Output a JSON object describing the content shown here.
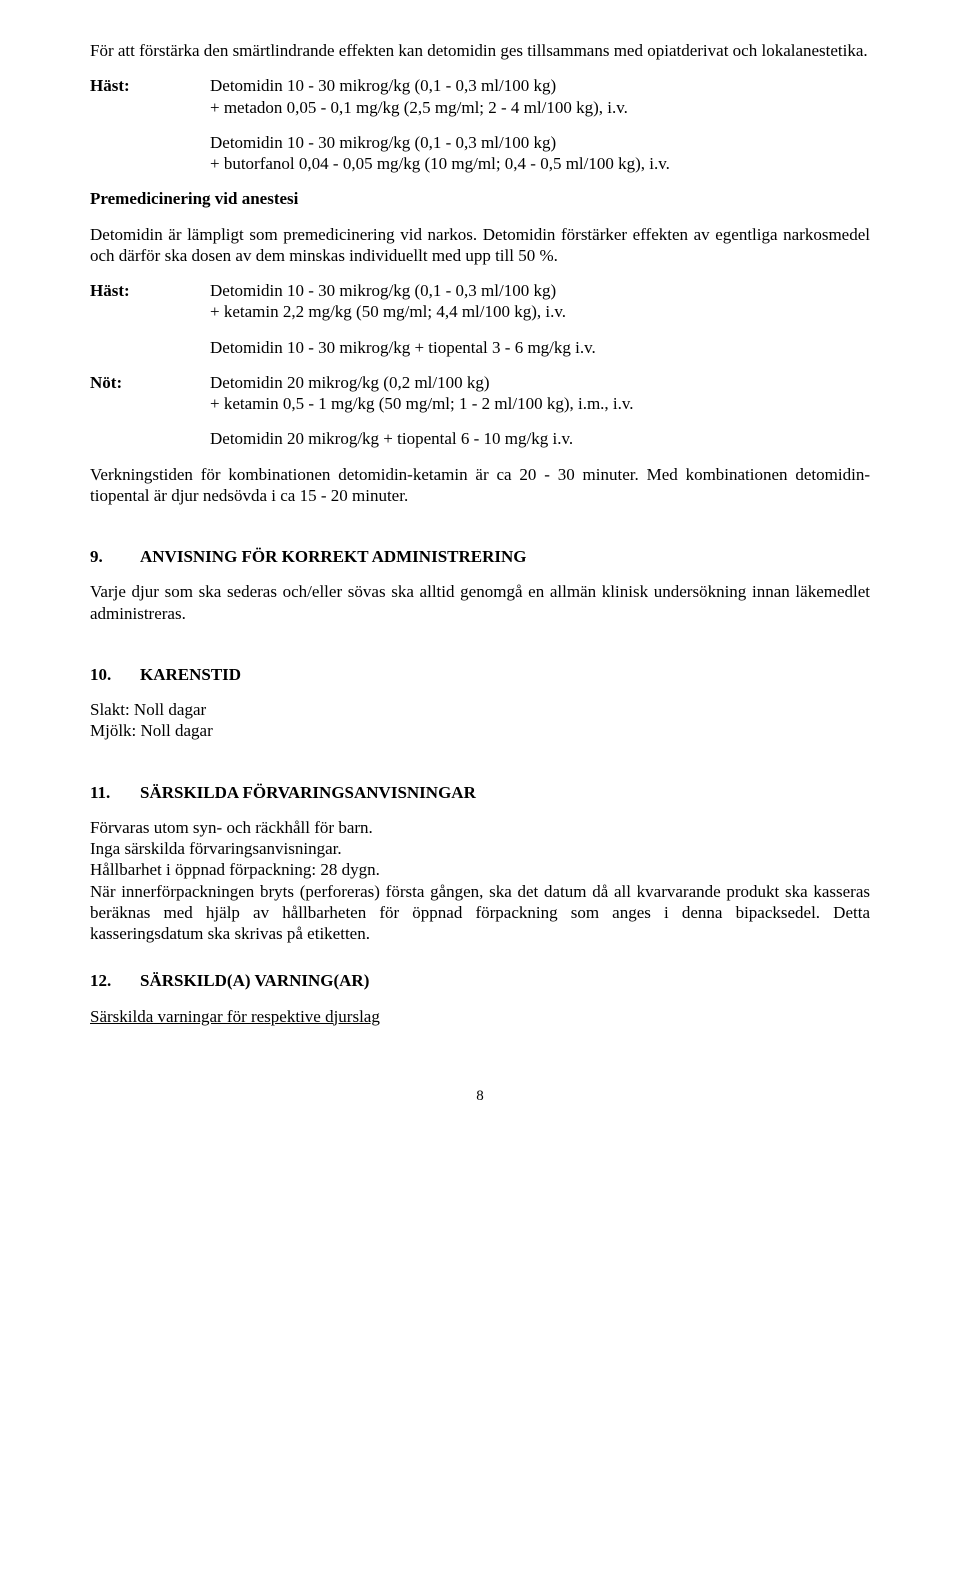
{
  "intro": "För att förstärka den smärtlindrande effekten kan detomidin ges tillsammans med opiatderivat och lokalanestetika.",
  "hast_label": "Häst:",
  "not_label": "Nöt:",
  "dosing1a": "Detomidin 10 - 30 mikrog/kg (0,1 - 0,3 ml/100 kg)",
  "dosing1b": "+ metadon 0,05 - 0,1 mg/kg (2,5 mg/ml; 2 - 4 ml/100 kg), i.v.",
  "dosing2a": "Detomidin 10 - 30 mikrog/kg (0,1 - 0,3 ml/100 kg)",
  "dosing2b": "+ butorfanol 0,04 - 0,05 mg/kg (10 mg/ml; 0,4 - 0,5 ml/100 kg), i.v.",
  "premed_heading": "Premedicinering vid anestesi",
  "premed_text": "Detomidin är lämpligt som premedicinering vid narkos. Detomidin förstärker effekten av egentliga narkosmedel och därför ska dosen av dem minskas individuellt med upp till 50 %.",
  "dosing3a": "Detomidin 10 - 30 mikrog/kg (0,1 - 0,3 ml/100 kg)",
  "dosing3b": "+ ketamin 2,2 mg/kg (50 mg/ml; 4,4 ml/100 kg), i.v.",
  "dosing3c": "Detomidin 10 - 30 mikrog/kg + tiopental 3 - 6 mg/kg i.v.",
  "dosing4a": "Detomidin 20 mikrog/kg (0,2 ml/100 kg)",
  "dosing4b": "+ ketamin 0,5 - 1 mg/kg (50 mg/ml; 1 - 2 ml/100 kg), i.m., i.v.",
  "dosing4c": "Detomidin 20 mikrog/kg + tiopental 6 - 10 mg/kg i.v.",
  "duration_text": "Verkningstiden för kombinationen detomidin-ketamin är ca 20 - 30 minuter. Med kombinationen detomidin-tiopental är djur nedsövda i ca 15 - 20 minuter.",
  "sec9_num": "9.",
  "sec9_title": "ANVISNING FÖR KORREKT ADMINISTRERING",
  "sec9_text": "Varje djur som ska sederas och/eller sövas ska alltid genomgå en allmän klinisk undersökning innan läkemedlet administreras.",
  "sec10_num": "10.",
  "sec10_title": "KARENSTID",
  "sec10_line1": "Slakt: Noll dagar",
  "sec10_line2": "Mjölk: Noll dagar",
  "sec11_num": "11.",
  "sec11_title": "SÄRSKILDA FÖRVARINGSANVISNINGAR",
  "sec11_l1": "Förvaras utom syn- och räckhåll för barn.",
  "sec11_l2": "Inga särskilda förvaringsanvisningar.",
  "sec11_l3": "Hållbarhet i öppnad förpackning: 28 dygn.",
  "sec11_l4": "När innerförpackningen bryts (perforeras) första gången, ska det datum då all kvarvarande produkt ska kasseras beräknas med hjälp av hållbarheten för öppnad förpackning som anges i denna bipacksedel. Detta kasseringsdatum ska skrivas på etiketten.",
  "sec12_num": "12.",
  "sec12_title": "SÄRSKILD(A) VARNING(AR)",
  "sec12_sub": "Särskilda varningar för respektive djurslag",
  "page_number": "8"
}
